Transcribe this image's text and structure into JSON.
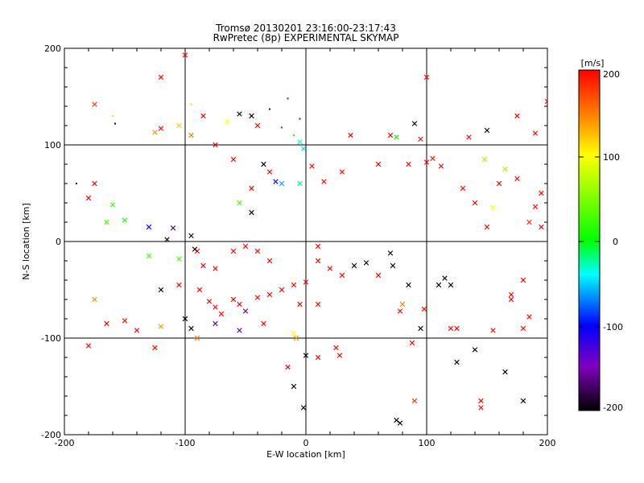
{
  "chart_data": {
    "type": "scatter",
    "title": "Tromsø 20130201 23:16:00-23:17:43",
    "subtitle": "RwPretec (8p) EXPERIMENTAL SKYMAP",
    "xlabel": "E-W location [km]",
    "ylabel": "N-S location [km]",
    "xlim": [
      -200,
      200
    ],
    "ylim": [
      -200,
      200
    ],
    "xticks": [
      "-200",
      "-100",
      "0",
      "100",
      "200"
    ],
    "yticks": [
      "-200",
      "-100",
      "0",
      "100",
      "200"
    ],
    "grid": true,
    "markers": [
      "dot",
      "x"
    ],
    "colorbar": {
      "label": "[m/s]",
      "min": -200,
      "max": 200,
      "ticks": [
        "200",
        "100",
        "0",
        "-100",
        "-200"
      ],
      "colors": [
        "#000000",
        "#8000c0",
        "#0000ff",
        "#00ffff",
        "#00ff00",
        "#ffff00",
        "#ff8000",
        "#ff0000"
      ]
    },
    "points": [
      [
        -120,
        170,
        200,
        "x"
      ],
      [
        -100,
        193,
        200,
        "x"
      ],
      [
        -175,
        142,
        180,
        "x"
      ],
      [
        -160,
        130,
        80,
        "dot"
      ],
      [
        -158,
        122,
        -200,
        "dot"
      ],
      [
        -120,
        117,
        200,
        "x"
      ],
      [
        -125,
        113,
        140,
        "x"
      ],
      [
        -95,
        142,
        120,
        "dot"
      ],
      [
        -85,
        130,
        200,
        "x"
      ],
      [
        -55,
        132,
        -200,
        "x"
      ],
      [
        -45,
        130,
        -200,
        "x"
      ],
      [
        -30,
        137,
        -180,
        "dot"
      ],
      [
        -15,
        148,
        -150,
        "dot"
      ],
      [
        -5,
        127,
        -140,
        "dot"
      ],
      [
        -65,
        124,
        100,
        "x"
      ],
      [
        -40,
        120,
        200,
        "x"
      ],
      [
        -20,
        118,
        -80,
        "dot"
      ],
      [
        -10,
        110,
        0,
        "dot"
      ],
      [
        -5,
        103,
        -30,
        "x"
      ],
      [
        -2,
        96,
        -50,
        "x"
      ],
      [
        -95,
        110,
        150,
        "x"
      ],
      [
        -105,
        120,
        120,
        "x"
      ],
      [
        37,
        110,
        200,
        "x"
      ],
      [
        90,
        122,
        -200,
        "x"
      ],
      [
        100,
        170,
        200,
        "x"
      ],
      [
        150,
        115,
        -200,
        "x"
      ],
      [
        175,
        130,
        200,
        "x"
      ],
      [
        190,
        112,
        200,
        "x"
      ],
      [
        200,
        145,
        200,
        "x"
      ],
      [
        165,
        75,
        60,
        "x"
      ],
      [
        175,
        65,
        200,
        "x"
      ],
      [
        195,
        50,
        200,
        "x"
      ],
      [
        190,
        36,
        200,
        "x"
      ],
      [
        185,
        20,
        180,
        "x"
      ],
      [
        195,
        15,
        200,
        "x"
      ],
      [
        155,
        35,
        100,
        "x"
      ],
      [
        160,
        60,
        200,
        "x"
      ],
      [
        130,
        55,
        200,
        "x"
      ],
      [
        -175,
        60,
        200,
        "x"
      ],
      [
        -160,
        38,
        20,
        "x"
      ],
      [
        -150,
        22,
        10,
        "x"
      ],
      [
        -110,
        14,
        -180,
        "x"
      ],
      [
        -95,
        6,
        -200,
        "x"
      ],
      [
        -180,
        45,
        200,
        "x"
      ],
      [
        -190,
        60,
        -180,
        "dot"
      ],
      [
        -45,
        30,
        -200,
        "x"
      ],
      [
        -20,
        60,
        -60,
        "x"
      ],
      [
        -5,
        60,
        -20,
        "x"
      ],
      [
        5,
        78,
        200,
        "x"
      ],
      [
        30,
        72,
        200,
        "x"
      ],
      [
        60,
        80,
        200,
        "x"
      ],
      [
        85,
        80,
        200,
        "x"
      ],
      [
        100,
        82,
        200,
        "x"
      ],
      [
        112,
        78,
        200,
        "x"
      ],
      [
        105,
        86,
        200,
        "x"
      ],
      [
        -130,
        -15,
        20,
        "x"
      ],
      [
        -105,
        -18,
        20,
        "x"
      ],
      [
        -120,
        -50,
        -200,
        "x"
      ],
      [
        -105,
        -45,
        200,
        "x"
      ],
      [
        -88,
        -50,
        200,
        "x"
      ],
      [
        -80,
        -62,
        200,
        "x"
      ],
      [
        -75,
        -68,
        200,
        "x"
      ],
      [
        -70,
        -75,
        200,
        "x"
      ],
      [
        -60,
        -60,
        200,
        "x"
      ],
      [
        -55,
        -65,
        200,
        "x"
      ],
      [
        -50,
        -72,
        -160,
        "x"
      ],
      [
        -55,
        -92,
        -160,
        "x"
      ],
      [
        -40,
        -58,
        200,
        "x"
      ],
      [
        -30,
        -55,
        200,
        "x"
      ],
      [
        -20,
        -50,
        200,
        "x"
      ],
      [
        -10,
        -45,
        200,
        "x"
      ],
      [
        0,
        -42,
        200,
        "x"
      ],
      [
        -5,
        -65,
        200,
        "x"
      ],
      [
        10,
        -65,
        200,
        "x"
      ],
      [
        -180,
        -108,
        200,
        "x"
      ],
      [
        -165,
        -85,
        200,
        "x"
      ],
      [
        -150,
        -82,
        200,
        "x"
      ],
      [
        -140,
        -92,
        200,
        "x"
      ],
      [
        -125,
        -110,
        200,
        "x"
      ],
      [
        -100,
        -80,
        -200,
        "x"
      ],
      [
        -120,
        -88,
        140,
        "x"
      ],
      [
        -95,
        -90,
        -200,
        "x"
      ],
      [
        -90,
        -100,
        150,
        "x"
      ],
      [
        -75,
        -85,
        -160,
        "x"
      ],
      [
        -35,
        -85,
        200,
        "x"
      ],
      [
        -10,
        -95,
        100,
        "x"
      ],
      [
        -8,
        -100,
        140,
        "x"
      ],
      [
        0,
        -118,
        -200,
        "x"
      ],
      [
        -10,
        -150,
        -200,
        "x"
      ],
      [
        -2,
        -172,
        -200,
        "x"
      ],
      [
        10,
        -120,
        200,
        "x"
      ],
      [
        25,
        -110,
        200,
        "x"
      ],
      [
        28,
        -118,
        200,
        "x"
      ],
      [
        -15,
        -130,
        200,
        "x"
      ],
      [
        40,
        -25,
        -200,
        "x"
      ],
      [
        50,
        -22,
        -200,
        "x"
      ],
      [
        70,
        -12,
        -200,
        "x"
      ],
      [
        72,
        -25,
        -200,
        "x"
      ],
      [
        85,
        -45,
        -200,
        "x"
      ],
      [
        110,
        -45,
        -200,
        "x"
      ],
      [
        115,
        -38,
        -200,
        "x"
      ],
      [
        120,
        -45,
        -200,
        "x"
      ],
      [
        80,
        -65,
        150,
        "x"
      ],
      [
        78,
        -72,
        200,
        "x"
      ],
      [
        98,
        -70,
        200,
        "x"
      ],
      [
        88,
        -105,
        200,
        "x"
      ],
      [
        95,
        -90,
        -200,
        "x"
      ],
      [
        125,
        -90,
        200,
        "x"
      ],
      [
        125,
        -125,
        -200,
        "x"
      ],
      [
        140,
        -112,
        -200,
        "x"
      ],
      [
        120,
        -90,
        200,
        "x"
      ],
      [
        155,
        -92,
        200,
        "x"
      ],
      [
        165,
        -135,
        -200,
        "x"
      ],
      [
        145,
        -165,
        200,
        "x"
      ],
      [
        145,
        -172,
        200,
        "x"
      ],
      [
        180,
        -165,
        -200,
        "x"
      ],
      [
        185,
        -78,
        200,
        "x"
      ],
      [
        180,
        -90,
        200,
        "x"
      ],
      [
        170,
        -55,
        200,
        "x"
      ],
      [
        180,
        -40,
        200,
        "x"
      ],
      [
        90,
        -165,
        180,
        "x"
      ],
      [
        75,
        -185,
        -200,
        "x"
      ],
      [
        78,
        -188,
        -200,
        "x"
      ],
      [
        170,
        -60,
        200,
        "x"
      ],
      [
        -50,
        -5,
        200,
        "x"
      ],
      [
        -40,
        -10,
        200,
        "x"
      ],
      [
        -30,
        -20,
        200,
        "x"
      ],
      [
        -60,
        -10,
        200,
        "x"
      ],
      [
        -90,
        -10,
        200,
        "x"
      ],
      [
        -85,
        -25,
        200,
        "x"
      ],
      [
        -75,
        -28,
        200,
        "x"
      ],
      [
        10,
        -20,
        200,
        "x"
      ],
      [
        20,
        -28,
        200,
        "x"
      ],
      [
        30,
        -35,
        200,
        "x"
      ],
      [
        60,
        -35,
        200,
        "x"
      ],
      [
        10,
        -5,
        200,
        "x"
      ],
      [
        -130,
        15,
        -100,
        "x"
      ],
      [
        -115,
        2,
        -200,
        "x"
      ],
      [
        -92,
        -8,
        -200,
        "x"
      ],
      [
        70,
        110,
        200,
        "x"
      ],
      [
        75,
        108,
        0,
        "x"
      ],
      [
        95,
        106,
        200,
        "x"
      ],
      [
        135,
        108,
        200,
        "x"
      ],
      [
        148,
        85,
        60,
        "x"
      ],
      [
        -30,
        72,
        200,
        "x"
      ],
      [
        -45,
        55,
        200,
        "x"
      ],
      [
        -55,
        40,
        30,
        "x"
      ],
      [
        15,
        62,
        200,
        "x"
      ],
      [
        -60,
        85,
        200,
        "x"
      ],
      [
        -75,
        100,
        200,
        "x"
      ],
      [
        -35,
        80,
        -200,
        "x"
      ],
      [
        -25,
        62,
        -100,
        "x"
      ],
      [
        140,
        40,
        200,
        "x"
      ],
      [
        150,
        15,
        200,
        "x"
      ],
      [
        -165,
        20,
        30,
        "x"
      ],
      [
        -175,
        -60,
        140,
        "x"
      ]
    ]
  }
}
